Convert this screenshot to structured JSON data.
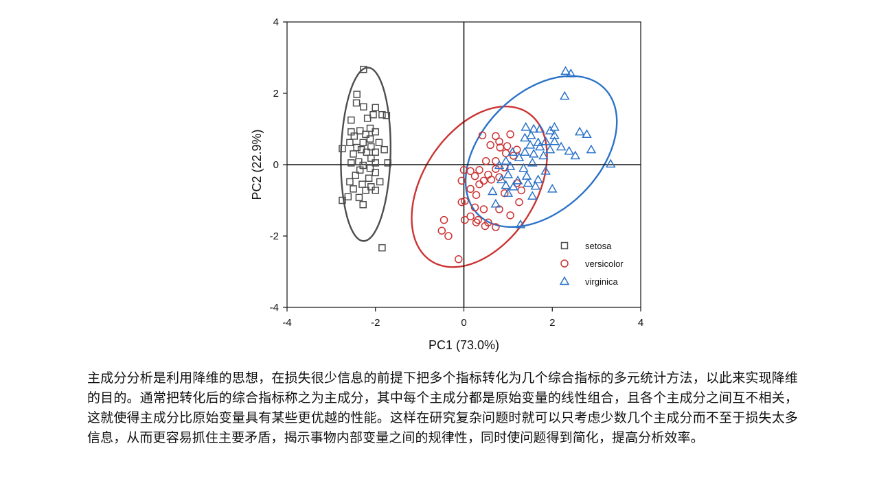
{
  "chart_data": {
    "type": "scatter",
    "xlabel": "PC1 (73.0%)",
    "ylabel": "PC2 (22.9%)",
    "xlim": [
      -4,
      4
    ],
    "ylim": [
      -4,
      4
    ],
    "xticks": [
      "-4",
      "-2",
      "0",
      "2",
      "4"
    ],
    "yticks": [
      "-4",
      "-2",
      "0",
      "2",
      "4"
    ],
    "zero_lines": true,
    "legend_placement": "bottom-right inside",
    "series": [
      {
        "name": "setosa",
        "marker": "square",
        "color": "#4d4d4d",
        "ellipse": {
          "cx": -2.22,
          "cy": 0.29,
          "rx": 0.56,
          "ry": 2.43,
          "angle": 1.5
        },
        "points": [
          [
            -2.27,
            2.67
          ],
          [
            -2.43,
            1.73
          ],
          [
            -2.42,
            1.97
          ],
          [
            -2.27,
            1.62
          ],
          [
            -2.0,
            1.6
          ],
          [
            -2.05,
            1.4
          ],
          [
            -2.18,
            1.3
          ],
          [
            -2.55,
            1.25
          ],
          [
            -1.75,
            1.38
          ],
          [
            -1.85,
            1.4
          ],
          [
            -2.12,
            1.02
          ],
          [
            -2.35,
            0.95
          ],
          [
            -2.55,
            0.92
          ],
          [
            -2.0,
            0.92
          ],
          [
            -2.22,
            0.85
          ],
          [
            -2.48,
            0.8
          ],
          [
            -2.12,
            0.72
          ],
          [
            -2.28,
            0.62
          ],
          [
            -1.92,
            0.62
          ],
          [
            -2.58,
            0.62
          ],
          [
            -2.1,
            0.5
          ],
          [
            -2.42,
            0.48
          ],
          [
            -2.75,
            0.45
          ],
          [
            -2.32,
            0.42
          ],
          [
            -1.8,
            0.42
          ],
          [
            -2.0,
            0.35
          ],
          [
            -2.2,
            0.35
          ],
          [
            -2.5,
            0.3
          ],
          [
            -2.1,
            0.18
          ],
          [
            -2.38,
            0.08
          ],
          [
            -1.72,
            0.05
          ],
          [
            -2.0,
            0.05
          ],
          [
            -2.55,
            0.05
          ],
          [
            -2.28,
            -0.02
          ],
          [
            -2.12,
            -0.1
          ],
          [
            -2.35,
            -0.15
          ],
          [
            -2.0,
            -0.22
          ],
          [
            -2.45,
            -0.3
          ],
          [
            -2.15,
            -0.38
          ],
          [
            -2.58,
            -0.48
          ],
          [
            -1.9,
            -0.48
          ],
          [
            -2.3,
            -0.55
          ],
          [
            -2.1,
            -0.62
          ],
          [
            -2.5,
            -0.68
          ],
          [
            -2.22,
            -0.72
          ],
          [
            -2.0,
            -0.72
          ],
          [
            -2.62,
            -0.9
          ],
          [
            -2.37,
            -0.92
          ],
          [
            -2.75,
            -1.0
          ],
          [
            -2.28,
            -1.12
          ],
          [
            -1.85,
            -2.33
          ]
        ]
      },
      {
        "name": "versicolor",
        "marker": "circle",
        "color": "#cc3333",
        "ellipse": {
          "cx": 0.35,
          "cy": -0.62,
          "rx": 1.28,
          "ry": 2.48,
          "angle": 33
        },
        "points": [
          [
            0.42,
            0.82
          ],
          [
            1.05,
            0.85
          ],
          [
            0.72,
            0.8
          ],
          [
            0.8,
            0.65
          ],
          [
            0.98,
            0.52
          ],
          [
            0.6,
            0.55
          ],
          [
            0.82,
            0.48
          ],
          [
            1.2,
            0.42
          ],
          [
            0.95,
            0.32
          ],
          [
            1.12,
            0.25
          ],
          [
            0.5,
            0.1
          ],
          [
            0.72,
            0.1
          ],
          [
            0.0,
            -0.15
          ],
          [
            0.15,
            -0.18
          ],
          [
            0.35,
            -0.15
          ],
          [
            0.72,
            -0.12
          ],
          [
            0.92,
            -0.08
          ],
          [
            0.25,
            -0.32
          ],
          [
            0.55,
            -0.28
          ],
          [
            0.8,
            -0.35
          ],
          [
            -0.05,
            -0.45
          ],
          [
            0.45,
            -0.45
          ],
          [
            0.62,
            -0.42
          ],
          [
            0.35,
            -0.55
          ],
          [
            1.2,
            -0.52
          ],
          [
            0.15,
            -0.68
          ],
          [
            0.92,
            -0.8
          ],
          [
            1.3,
            -0.72
          ],
          [
            0.28,
            -0.85
          ],
          [
            0.02,
            -1.02
          ],
          [
            -0.05,
            -1.05
          ],
          [
            0.25,
            -1.2
          ],
          [
            0.45,
            -1.25
          ],
          [
            1.25,
            -1.05
          ],
          [
            0.8,
            -1.25
          ],
          [
            0.15,
            -1.45
          ],
          [
            0.32,
            -1.55
          ],
          [
            0.55,
            -1.62
          ],
          [
            1.05,
            -1.42
          ],
          [
            0.02,
            -1.55
          ],
          [
            0.28,
            -1.62
          ],
          [
            -0.45,
            -1.55
          ],
          [
            0.48,
            -1.72
          ],
          [
            0.72,
            -1.75
          ],
          [
            -0.5,
            -1.85
          ],
          [
            -0.35,
            -2.0
          ],
          [
            -0.12,
            -2.65
          ]
        ]
      },
      {
        "name": "virginica",
        "marker": "triangle",
        "color": "#2a72c8",
        "ellipse": {
          "cx": 1.75,
          "cy": 0.37,
          "rx": 1.33,
          "ry": 2.5,
          "angle": 45
        },
        "points": [
          [
            2.3,
            2.62
          ],
          [
            2.42,
            2.55
          ],
          [
            2.28,
            1.92
          ],
          [
            1.4,
            1.05
          ],
          [
            1.58,
            1.0
          ],
          [
            1.72,
            1.0
          ],
          [
            1.95,
            0.95
          ],
          [
            2.05,
            1.05
          ],
          [
            2.62,
            0.92
          ],
          [
            2.78,
            0.85
          ],
          [
            2.05,
            0.82
          ],
          [
            1.38,
            0.75
          ],
          [
            1.52,
            0.82
          ],
          [
            1.68,
            0.62
          ],
          [
            1.85,
            0.65
          ],
          [
            2.05,
            0.65
          ],
          [
            1.5,
            0.55
          ],
          [
            1.72,
            0.5
          ],
          [
            2.2,
            0.5
          ],
          [
            1.95,
            0.42
          ],
          [
            2.38,
            0.38
          ],
          [
            2.88,
            0.42
          ],
          [
            1.1,
            0.35
          ],
          [
            1.38,
            0.35
          ],
          [
            1.58,
            0.3
          ],
          [
            2.52,
            0.25
          ],
          [
            1.25,
            0.2
          ],
          [
            1.8,
            0.25
          ],
          [
            0.95,
            0.1
          ],
          [
            1.55,
            0.05
          ],
          [
            0.8,
            -0.02
          ],
          [
            1.05,
            -0.05
          ],
          [
            1.35,
            -0.1
          ],
          [
            3.32,
            0.02
          ],
          [
            1.85,
            -0.18
          ],
          [
            1.0,
            -0.28
          ],
          [
            1.42,
            -0.32
          ],
          [
            0.85,
            -0.42
          ],
          [
            1.22,
            -0.45
          ],
          [
            1.68,
            -0.42
          ],
          [
            0.95,
            -0.58
          ],
          [
            1.12,
            -0.62
          ],
          [
            1.45,
            -0.52
          ],
          [
            1.62,
            -0.6
          ],
          [
            2.0,
            -0.68
          ],
          [
            0.65,
            -0.75
          ],
          [
            1.0,
            -0.8
          ],
          [
            1.55,
            -0.88
          ],
          [
            0.72,
            -1.1
          ],
          [
            1.28,
            -1.68
          ]
        ]
      }
    ]
  },
  "caption": "主成分分析是利用降维的思想，在损失很少信息的前提下把多个指标转化为几个综合指标的多元统计方法，以此来实现降维的目的。通常把转化后的综合指标称之为主成分，其中每个主成分都是原始变量的线性组合，且各个主成分之间互不相关，这就使得主成分比原始变量具有某些更优越的性能。这样在研究复杂问题时就可以只考虑少数几个主成分而不至于损失太多信息，从而更容易抓住主要矛盾，揭示事物内部变量之间的规律性，同时使问题得到简化，提高分析效率。"
}
